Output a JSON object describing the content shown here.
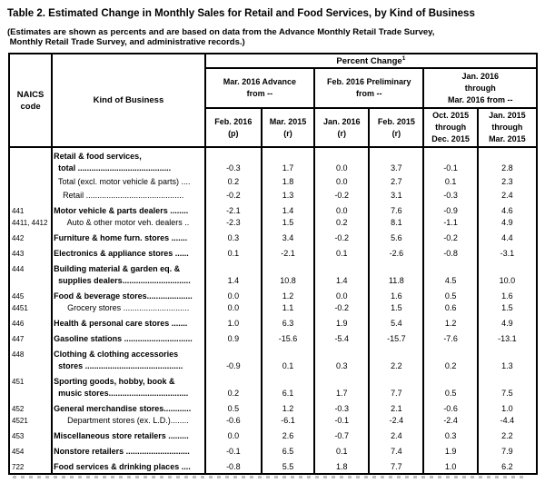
{
  "page": {
    "title": "Table 2.  Estimated Change in Monthly Sales for Retail and Food Services, by Kind of Business",
    "subtitle": "(Estimates are shown as percents and are based on data from the Advance Monthly Retail Trade Survey,\n Monthly Retail Trade Survey, and administrative records.)"
  },
  "table": {
    "corner": {
      "naics": "NAICS\ncode",
      "kind_of_business": "Kind of Business"
    },
    "percent_change": "Percent Change",
    "percent_change_footnote_mark": "1",
    "groups": [
      {
        "label": "Mar. 2016 Advance\nfrom --"
      },
      {
        "label": "Feb. 2016 Preliminary\nfrom --"
      },
      {
        "label": "Jan. 2016\nthrough\nMar. 2016 from --"
      }
    ],
    "columns": [
      "Feb. 2016\n(p)",
      "Mar. 2015\n(r)",
      "Jan. 2016\n(r)",
      "Feb. 2015\n(r)",
      "Oct. 2015\nthrough\nDec. 2015",
      "Jan. 2015\nthrough\nMar. 2015"
    ],
    "rows": [
      {
        "naics": "",
        "bold": true,
        "gap": "none",
        "lines": [
          "Retail & food services,",
          "  total ........................................."
        ],
        "values": [
          "-0.3",
          "1.7",
          "0.0",
          "3.7",
          "-0.1",
          "2.8"
        ]
      },
      {
        "naics": "",
        "bold": false,
        "gap": "sm",
        "lines": [
          "  Total (excl. motor vehicle & parts) ...."
        ],
        "values": [
          "0.2",
          "1.8",
          "0.0",
          "2.7",
          "0.1",
          "2.3"
        ]
      },
      {
        "naics": "",
        "bold": false,
        "gap": "sm",
        "lines": [
          "    Retail ..........................................."
        ],
        "values": [
          "-0.2",
          "1.3",
          "-0.2",
          "3.1",
          "-0.3",
          "2.4"
        ]
      },
      {
        "naics": "441",
        "bold": true,
        "gap": "lg",
        "lines": [
          "Motor vehicle & parts dealers ........"
        ],
        "values": [
          "-2.1",
          "1.4",
          "0.0",
          "7.6",
          "-0.9",
          "4.6"
        ]
      },
      {
        "naics": "4411, 4412",
        "bold": false,
        "gap": "none",
        "lines": [
          "      Auto & other motor veh. dealers .."
        ],
        "values": [
          "-2.3",
          "1.5",
          "0.2",
          "8.1",
          "-1.1",
          "4.9"
        ]
      },
      {
        "naics": "442",
        "bold": true,
        "gap": "lg",
        "lines": [
          "Furniture & home furn. stores ......."
        ],
        "values": [
          "0.3",
          "3.4",
          "-0.2",
          "5.6",
          "-0.2",
          "4.4"
        ]
      },
      {
        "naics": "443",
        "bold": true,
        "gap": "lg",
        "lines": [
          "Electronics & appliance stores ......"
        ],
        "values": [
          "0.1",
          "-2.1",
          "0.1",
          "-2.6",
          "-0.8",
          "-3.1"
        ]
      },
      {
        "naics": "444",
        "bold": true,
        "gap": "lg",
        "lines": [
          "Building material & garden eq. &",
          "  supplies dealers.............................."
        ],
        "values": [
          "1.4",
          "10.8",
          "1.4",
          "11.8",
          "4.5",
          "10.0"
        ]
      },
      {
        "naics": "445",
        "bold": true,
        "gap": "lg",
        "lines": [
          "Food & beverage stores...................."
        ],
        "values": [
          "0.0",
          "1.2",
          "0.0",
          "1.6",
          "0.5",
          "1.6"
        ]
      },
      {
        "naics": "4451",
        "bold": false,
        "gap": "none",
        "lines": [
          "      Grocery stores ............................."
        ],
        "values": [
          "0.0",
          "1.1",
          "-0.2",
          "1.5",
          "0.6",
          "1.5"
        ]
      },
      {
        "naics": "446",
        "bold": true,
        "gap": "lg",
        "lines": [
          "Health & personal care stores ......."
        ],
        "values": [
          "1.0",
          "6.3",
          "1.9",
          "5.4",
          "1.2",
          "4.9"
        ]
      },
      {
        "naics": "447",
        "bold": true,
        "gap": "lg",
        "lines": [
          "Gasoline stations .............................."
        ],
        "values": [
          "0.9",
          "-15.6",
          "-5.4",
          "-15.7",
          "-7.6",
          "-13.1"
        ]
      },
      {
        "naics": "448",
        "bold": true,
        "gap": "lg",
        "lines": [
          "Clothing & clothing accessories",
          "  stores ..........................................."
        ],
        "values": [
          "-0.9",
          "0.1",
          "0.3",
          "2.2",
          "0.2",
          "1.3"
        ]
      },
      {
        "naics": "451",
        "bold": true,
        "gap": "lg",
        "lines": [
          "Sporting goods, hobby, book &",
          "  music stores..................................."
        ],
        "values": [
          "0.2",
          "6.1",
          "1.7",
          "7.7",
          "0.5",
          "7.5"
        ]
      },
      {
        "naics": "452",
        "bold": true,
        "gap": "lg",
        "lines": [
          "General merchandise stores............"
        ],
        "values": [
          "0.5",
          "1.2",
          "-0.3",
          "2.1",
          "-0.6",
          "1.0"
        ]
      },
      {
        "naics": "4521",
        "bold": false,
        "gap": "none",
        "lines": [
          "      Department stores (ex. L.D.)........"
        ],
        "values": [
          "-0.6",
          "-6.1",
          "-0.1",
          "-2.4",
          "-2.4",
          "-4.4"
        ]
      },
      {
        "naics": "453",
        "bold": true,
        "gap": "lg",
        "lines": [
          "Miscellaneous store retailers ........."
        ],
        "values": [
          "0.0",
          "2.6",
          "-0.7",
          "2.4",
          "0.3",
          "2.2"
        ]
      },
      {
        "naics": "454",
        "bold": true,
        "gap": "lg",
        "lines": [
          "Nonstore retailers ............................"
        ],
        "values": [
          "-0.1",
          "6.5",
          "0.1",
          "7.4",
          "1.9",
          "7.9"
        ]
      },
      {
        "naics": "722",
        "bold": true,
        "gap": "lg",
        "lines": [
          "Food services & drinking places ...."
        ],
        "values": [
          "-0.8",
          "5.5",
          "1.8",
          "7.7",
          "1.0",
          "6.2"
        ]
      }
    ]
  }
}
